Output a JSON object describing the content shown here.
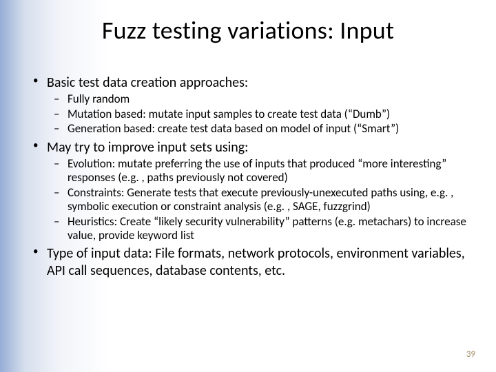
{
  "slide": {
    "title": "Fuzz testing variations: Input",
    "page_number": "39",
    "background_gradient": {
      "from": "#96add6",
      "via": "#f2f4f9",
      "to": "#ffffff"
    },
    "title_fontsize": 36,
    "body_fontsize": 20,
    "sub_fontsize": 17,
    "pagenum_color": "#a68f6a",
    "bullets": [
      {
        "text": "Basic test data creation approaches:",
        "sub": [
          "Fully random",
          "Mutation based: mutate input samples to create test data (“Dumb”)",
          "Generation based: create test data based on model of input (“Smart”)"
        ]
      },
      {
        "text": "May try to improve input sets using:",
        "sub": [
          "Evolution: mutate preferring the use of inputs that produced “more interesting” responses (e.g. , paths previously not covered)",
          "Constraints: Generate tests that execute previously-unexecuted paths using, e.g. , symbolic execution or constraint analysis (e.g. , SAGE, fuzzgrind)",
          "Heuristics: Create “likely security vulnerability” patterns (e.g. metachars) to increase value, provide keyword list"
        ]
      },
      {
        "text": "Type of input data: File formats, network protocols, environment variables, API call sequences, database contents, etc.",
        "sub": []
      }
    ]
  }
}
